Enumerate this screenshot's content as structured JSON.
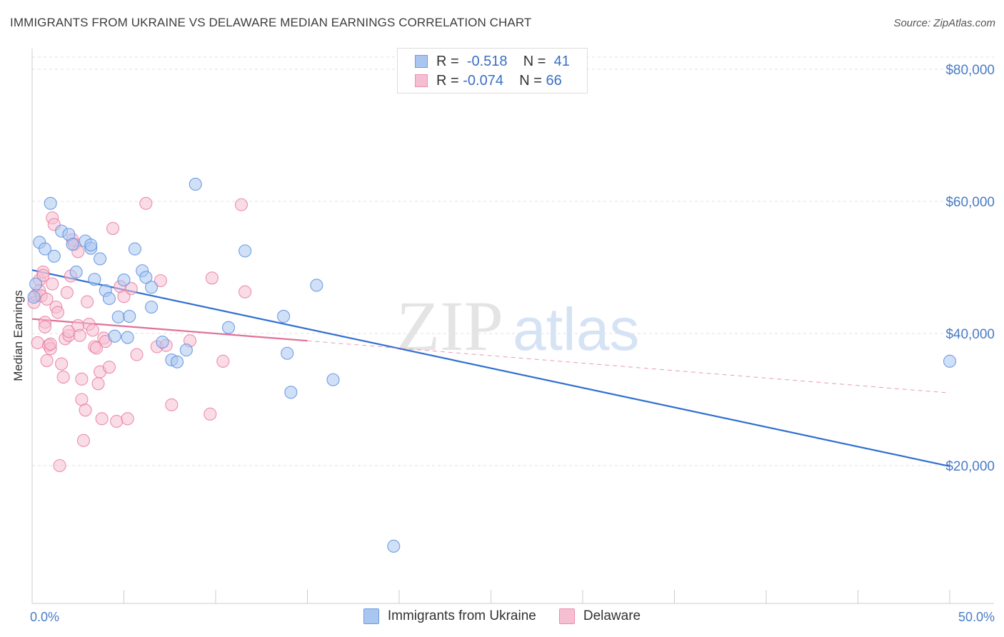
{
  "title": "IMMIGRANTS FROM UKRAINE VS DELAWARE MEDIAN EARNINGS CORRELATION CHART",
  "source": "Source: ZipAtlas.com",
  "watermark": {
    "zip": "ZIP",
    "atlas": "atlas"
  },
  "legend": {
    "rows": [
      {
        "r_label": "R =",
        "r_value": "-0.518",
        "n_label": "N =",
        "n_value": "41",
        "color": "#a9c6f0",
        "border": "#6b9be0"
      },
      {
        "r_label": "R =",
        "r_value": "-0.074",
        "n_label": "N =",
        "n_value": "66",
        "color": "#f6bfd1",
        "border": "#e98fae"
      }
    ]
  },
  "colors": {
    "blue": "#5b8fe0",
    "blue_fill": "#a9c6f0",
    "pink": "#e87ca0",
    "pink_fill": "#f6bfd1",
    "blue_line": "#2e6fd0",
    "pink_line": "#e0709a"
  },
  "chart_data": {
    "type": "scatter",
    "title": "IMMIGRANTS FROM UKRAINE VS DELAWARE MEDIAN EARNINGS CORRELATION CHART",
    "xlabel": "",
    "ylabel": "Median Earnings",
    "xlim": [
      0,
      50
    ],
    "ylim": [
      2000,
      83000
    ],
    "x_tick_labels": [
      "0.0%",
      "50.0%"
    ],
    "y_ticks": [
      20000,
      40000,
      60000,
      80000
    ],
    "y_tick_labels": [
      "$20,000",
      "$40,000",
      "$60,000",
      "$80,000"
    ],
    "grid": true,
    "legend_position": "top-center",
    "series": [
      {
        "name": "Immigrants from Ukraine",
        "color": "#5b8fe0",
        "points": [
          [
            0.4,
            53800
          ],
          [
            0.7,
            52800
          ],
          [
            0.2,
            47500
          ],
          [
            0.1,
            45500
          ],
          [
            1.0,
            59700
          ],
          [
            1.2,
            51700
          ],
          [
            1.6,
            55500
          ],
          [
            2.0,
            55000
          ],
          [
            2.2,
            53500
          ],
          [
            2.4,
            49300
          ],
          [
            2.9,
            54000
          ],
          [
            3.2,
            52900
          ],
          [
            3.2,
            53400
          ],
          [
            3.4,
            48200
          ],
          [
            3.7,
            51300
          ],
          [
            4.0,
            46500
          ],
          [
            4.2,
            45300
          ],
          [
            4.5,
            39600
          ],
          [
            4.7,
            42500
          ],
          [
            5.0,
            48100
          ],
          [
            5.2,
            39400
          ],
          [
            5.3,
            42600
          ],
          [
            5.6,
            52800
          ],
          [
            6.0,
            49500
          ],
          [
            6.2,
            48500
          ],
          [
            6.5,
            47000
          ],
          [
            6.5,
            44000
          ],
          [
            7.1,
            38700
          ],
          [
            7.6,
            36000
          ],
          [
            7.9,
            35700
          ],
          [
            8.4,
            37500
          ],
          [
            8.9,
            62600
          ],
          [
            10.7,
            40900
          ],
          [
            11.6,
            52500
          ],
          [
            13.7,
            42600
          ],
          [
            13.9,
            37000
          ],
          [
            14.1,
            31100
          ],
          [
            15.5,
            47300
          ],
          [
            16.4,
            33000
          ],
          [
            19.7,
            7800
          ],
          [
            50.0,
            35800
          ]
        ],
        "trend": {
          "x": [
            0,
            50
          ],
          "y": [
            49600,
            19900
          ]
        }
      },
      {
        "name": "Delaware",
        "color": "#e87ca0",
        "points": [
          [
            0.1,
            44700
          ],
          [
            0.2,
            45800
          ],
          [
            0.3,
            38600
          ],
          [
            0.4,
            48100
          ],
          [
            0.4,
            46500
          ],
          [
            0.5,
            45700
          ],
          [
            0.6,
            49300
          ],
          [
            0.6,
            48800
          ],
          [
            0.7,
            41700
          ],
          [
            0.7,
            41000
          ],
          [
            0.8,
            45200
          ],
          [
            0.8,
            35900
          ],
          [
            0.9,
            38200
          ],
          [
            1.0,
            37700
          ],
          [
            1.0,
            38400
          ],
          [
            1.1,
            47500
          ],
          [
            1.1,
            57500
          ],
          [
            1.2,
            56500
          ],
          [
            1.3,
            44000
          ],
          [
            1.4,
            43200
          ],
          [
            1.5,
            20000
          ],
          [
            1.6,
            35400
          ],
          [
            1.7,
            33400
          ],
          [
            1.8,
            39200
          ],
          [
            1.9,
            46200
          ],
          [
            2.0,
            39700
          ],
          [
            2.0,
            40300
          ],
          [
            2.1,
            48700
          ],
          [
            2.2,
            54200
          ],
          [
            2.3,
            53500
          ],
          [
            2.5,
            52400
          ],
          [
            2.5,
            41200
          ],
          [
            2.6,
            39700
          ],
          [
            2.7,
            33100
          ],
          [
            2.7,
            30000
          ],
          [
            2.8,
            23800
          ],
          [
            2.9,
            28400
          ],
          [
            3.0,
            44800
          ],
          [
            3.1,
            41400
          ],
          [
            3.3,
            40500
          ],
          [
            3.4,
            38000
          ],
          [
            3.5,
            37800
          ],
          [
            3.6,
            32400
          ],
          [
            3.7,
            34200
          ],
          [
            3.8,
            27100
          ],
          [
            3.9,
            39300
          ],
          [
            4.0,
            38800
          ],
          [
            4.2,
            34900
          ],
          [
            4.4,
            55900
          ],
          [
            4.6,
            26700
          ],
          [
            4.8,
            47100
          ],
          [
            5.0,
            45600
          ],
          [
            5.2,
            27100
          ],
          [
            5.4,
            46800
          ],
          [
            5.7,
            36800
          ],
          [
            6.2,
            59700
          ],
          [
            6.8,
            38000
          ],
          [
            7.0,
            48000
          ],
          [
            7.3,
            38200
          ],
          [
            7.6,
            29200
          ],
          [
            8.6,
            38900
          ],
          [
            9.7,
            27800
          ],
          [
            9.8,
            48400
          ],
          [
            10.4,
            35800
          ],
          [
            11.4,
            59500
          ],
          [
            11.6,
            46300
          ]
        ],
        "trend": {
          "x": [
            0,
            15
          ],
          "y": [
            42200,
            38900
          ]
        },
        "trend_extension": {
          "x": [
            15,
            50
          ],
          "y": [
            38900,
            31000
          ]
        }
      }
    ]
  }
}
